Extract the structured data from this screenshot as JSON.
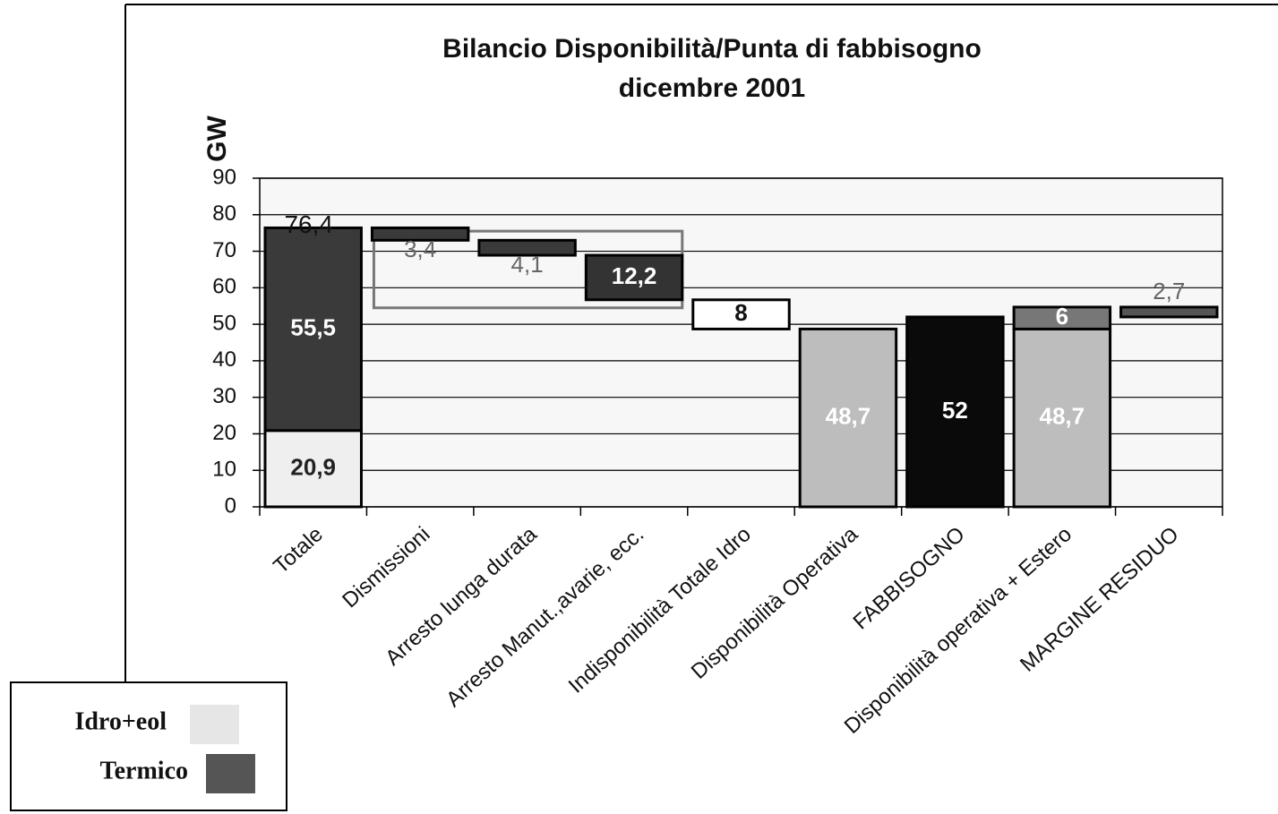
{
  "chart_data": {
    "type": "waterfall",
    "title": "Bilancio Disponibilità/Punta di fabbisogno",
    "subtitle": "dicembre 2001",
    "ylabel": "GW",
    "ylim": [
      0,
      90
    ],
    "yticks": [
      0,
      10,
      20,
      30,
      40,
      50,
      60,
      70,
      80,
      90
    ],
    "grid": true,
    "categories": [
      "Totale",
      "Dismissioni",
      "Arresto lunga durata",
      "Arresto Manut.,avarie, ecc.",
      "Indisponibilità Totale Idro",
      "Disponibilità Operativa",
      "FABBISOGNO",
      "Disponibilità operativa + Estero",
      "MARGINE RESIDUO"
    ],
    "steps": [
      {
        "mode": "total",
        "total": 76.4,
        "total_label": "76,4",
        "segments": [
          {
            "value": 20.9,
            "value_label": "20,9",
            "color": "#efefef",
            "label_color": "#222",
            "label_position": "inside"
          },
          {
            "value": 55.5,
            "value_label": "55,5",
            "color": "#3a3a3a",
            "label_color": "#fff",
            "label_position": "inside"
          }
        ]
      },
      {
        "mode": "down",
        "segments": [
          {
            "value": 3.4,
            "value_label": "3,4",
            "color": "#3a3a3a",
            "label_color": "#666",
            "label_position": "below"
          }
        ]
      },
      {
        "mode": "down",
        "segments": [
          {
            "value": 4.1,
            "value_label": "4,1",
            "color": "#3a3a3a",
            "label_color": "#666",
            "label_position": "below"
          }
        ]
      },
      {
        "mode": "down",
        "segments": [
          {
            "value": 12.2,
            "value_label": "12,2",
            "color": "#333",
            "label_color": "#fff",
            "label_position": "inside"
          }
        ]
      },
      {
        "mode": "down",
        "segments": [
          {
            "value": 8,
            "color": "#fff",
            "label_color": "#111",
            "label_position": "inside"
          }
        ]
      },
      {
        "mode": "total",
        "segments": [
          {
            "value": 48.7,
            "value_label": "48,7",
            "color": "#bdbdbd",
            "label_color": "#fff",
            "label_position": "inside"
          }
        ]
      },
      {
        "mode": "total",
        "segments": [
          {
            "value": 52,
            "color": "#0a0a0a",
            "label_color": "#fff",
            "label_position": "inside"
          }
        ]
      },
      {
        "mode": "total",
        "segments": [
          {
            "value": 48.7,
            "value_label": "48,7",
            "color": "#bdbdbd",
            "label_color": "#fff",
            "label_position": "inside"
          },
          {
            "value": 6,
            "color": "#777",
            "label_color": "#fff",
            "label_position": "inside"
          }
        ]
      },
      {
        "mode": "down",
        "segments": [
          {
            "value": 2.7,
            "value_label": "2,7",
            "color": "#555",
            "label_color": "#666",
            "label_position": "above"
          }
        ]
      }
    ],
    "legend": [
      {
        "name": "Idro+eol",
        "color": "#e6e6e6"
      },
      {
        "name": "Termico",
        "color": "#555"
      }
    ]
  }
}
